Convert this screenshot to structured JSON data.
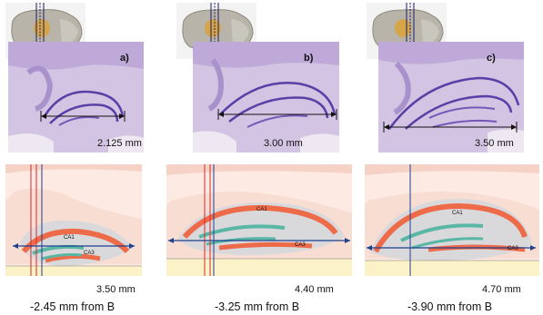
{
  "panels": [
    {
      "letter": "a)",
      "section_measure": "2.125 mm",
      "atlas_measure": "3.50 mm",
      "caption": "-2.45 mm from B"
    },
    {
      "letter": "b)",
      "section_measure": "3.00 mm",
      "atlas_measure": "4.40 mm",
      "caption": "-3.25 mm from B"
    },
    {
      "letter": "c)",
      "section_measure": "3.50 mm",
      "atlas_measure": "4.70 mm",
      "caption": "-3.90 mm from B"
    }
  ],
  "atlas_labels": {
    "ca1": "CA1",
    "ca3": "CA3"
  },
  "colors": {
    "nissl_bg": "#cbb8dd",
    "nissl_band": "#6a4fb0",
    "atlas_bg": "#fdeae3",
    "atlas_red": "#ee6b4a",
    "atlas_teal": "#5ab7a5",
    "atlas_gray": "#d9d9dc",
    "atlas_yellow": "#fbf3c7",
    "arrow_blue": "#1f3f8f"
  }
}
